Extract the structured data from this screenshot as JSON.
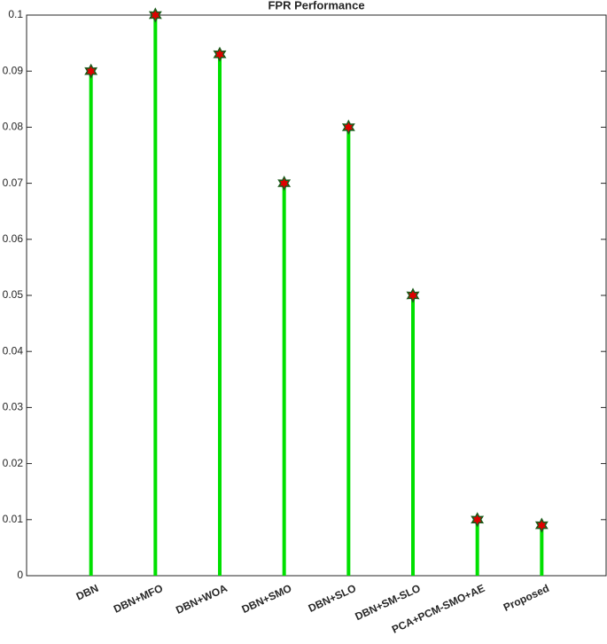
{
  "chart_data": {
    "type": "stem",
    "title": "FPR Performance",
    "categories": [
      "DBN",
      "DBN+MFO",
      "DBN+WOA",
      "DBN+SMO",
      "DBN+SLO",
      "DBN+SM-SLO",
      "PCA+PCM-SMO+AE",
      "Proposed"
    ],
    "values": [
      0.09,
      0.1,
      0.093,
      0.07,
      0.08,
      0.05,
      0.01,
      0.009
    ],
    "color": "#00e000",
    "marker_color": "#e00000",
    "marker_edge_color": "#1a5a1a",
    "ylim": [
      0,
      0.1
    ],
    "yticks": [
      0,
      0.01,
      0.02,
      0.03,
      0.04,
      0.05,
      0.06,
      0.07,
      0.08,
      0.09,
      0.1
    ]
  }
}
